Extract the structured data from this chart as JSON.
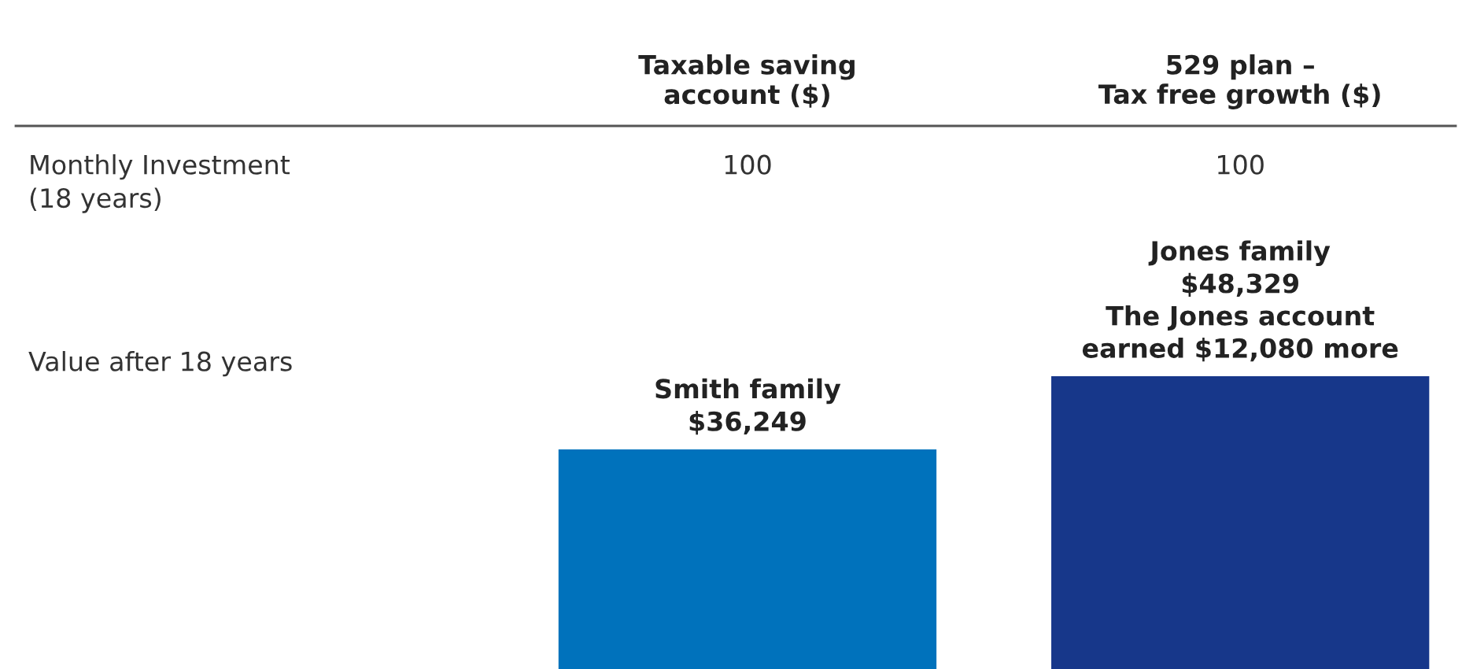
{
  "chart_data": {
    "type": "bar",
    "categories": [
      "Taxable saving\naccount ($)",
      "529 plan –\nTax free growth ($)"
    ],
    "values": [
      36249,
      48329
    ],
    "colors": [
      "#0072bc",
      "#17378a"
    ],
    "value_labels": [
      "Smith family\n$36,249",
      "Jones family\n$48,329\nThe Jones account\nearned $12,080 more"
    ],
    "annotations": [
      "Monthly Investment\n(18 years)",
      "100",
      "100",
      "Value after 18 years"
    ],
    "grid": false,
    "legend": false
  }
}
